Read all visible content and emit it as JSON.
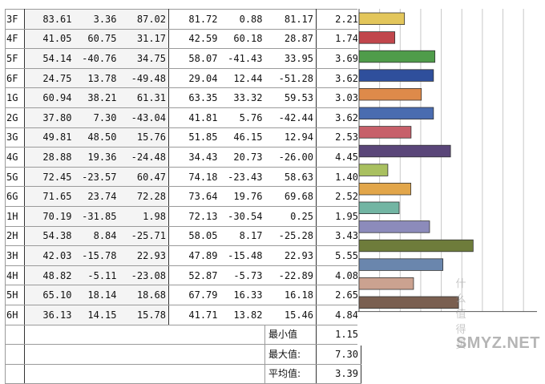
{
  "rows": [
    {
      "label": "3F",
      "a": [
        "83.61",
        "3.36",
        "87.02"
      ],
      "b": [
        "81.72",
        "0.88",
        "81.17"
      ],
      "de": "2.21",
      "color": "#e3c65b"
    },
    {
      "label": "4F",
      "a": [
        "41.05",
        "60.75",
        "31.17"
      ],
      "b": [
        "42.59",
        "60.18",
        "28.87"
      ],
      "de": "1.74",
      "color": "#c1464c"
    },
    {
      "label": "5F",
      "a": [
        "54.14",
        "-40.76",
        "34.75"
      ],
      "b": [
        "58.07",
        "-41.43",
        "33.95"
      ],
      "de": "3.69",
      "color": "#4f9c4a"
    },
    {
      "label": "6F",
      "a": [
        "24.75",
        "13.78",
        "-49.48"
      ],
      "b": [
        "29.04",
        "12.44",
        "-51.28"
      ],
      "de": "3.62",
      "color": "#2f4f9c"
    },
    {
      "label": "1G",
      "a": [
        "60.94",
        "38.21",
        "61.31"
      ],
      "b": [
        "63.35",
        "33.32",
        "59.53"
      ],
      "de": "3.03",
      "color": "#de8a4a"
    },
    {
      "label": "2G",
      "a": [
        "37.80",
        "7.30",
        "-43.04"
      ],
      "b": [
        "41.81",
        "5.76",
        "-42.44"
      ],
      "de": "3.62",
      "color": "#4a6cb0"
    },
    {
      "label": "3G",
      "a": [
        "49.81",
        "48.50",
        "15.76"
      ],
      "b": [
        "51.85",
        "46.15",
        "12.94"
      ],
      "de": "2.53",
      "color": "#c7606a"
    },
    {
      "label": "4G",
      "a": [
        "28.88",
        "19.36",
        "-24.48"
      ],
      "b": [
        "34.43",
        "20.73",
        "-26.00"
      ],
      "de": "4.45",
      "color": "#5a4679"
    },
    {
      "label": "5G",
      "a": [
        "72.45",
        "-23.57",
        "60.47"
      ],
      "b": [
        "74.18",
        "-23.43",
        "58.63"
      ],
      "de": "1.40",
      "color": "#a9c060"
    },
    {
      "label": "6G",
      "a": [
        "71.65",
        "23.74",
        "72.28"
      ],
      "b": [
        "73.64",
        "19.76",
        "69.68"
      ],
      "de": "2.52",
      "color": "#e2a64a"
    },
    {
      "label": "1H",
      "a": [
        "70.19",
        "-31.85",
        "1.98"
      ],
      "b": [
        "72.13",
        "-30.54",
        "0.25"
      ],
      "de": "1.95",
      "color": "#72b5a3"
    },
    {
      "label": "2H",
      "a": [
        "54.38",
        "8.84",
        "-25.71"
      ],
      "b": [
        "58.05",
        "8.17",
        "-25.28"
      ],
      "de": "3.43",
      "color": "#8c8bbb"
    },
    {
      "label": "3H",
      "a": [
        "42.03",
        "-15.78",
        "22.93"
      ],
      "b": [
        "47.89",
        "-15.48",
        "22.93"
      ],
      "de": "5.55",
      "color": "#6e7c3b"
    },
    {
      "label": "4H",
      "a": [
        "48.82",
        "-5.11",
        "-23.08"
      ],
      "b": [
        "52.87",
        "-5.73",
        "-22.89"
      ],
      "de": "4.08",
      "color": "#6a86ad"
    },
    {
      "label": "5H",
      "a": [
        "65.10",
        "18.14",
        "18.68"
      ],
      "b": [
        "67.79",
        "16.33",
        "16.18"
      ],
      "de": "2.65",
      "color": "#cba290"
    },
    {
      "label": "6H",
      "a": [
        "36.13",
        "14.15",
        "15.78"
      ],
      "b": [
        "41.71",
        "13.82",
        "15.46"
      ],
      "de": "4.84",
      "color": "#7a5f50"
    }
  ],
  "summary": [
    {
      "label": "最小值",
      "value": "1.15"
    },
    {
      "label": "最大值:",
      "value": "7.30"
    },
    {
      "label": "平均值:",
      "value": "3.39"
    }
  ],
  "chart_data": {
    "type": "bar",
    "orientation": "horizontal",
    "categories": [
      "3F",
      "4F",
      "5F",
      "6F",
      "1G",
      "2G",
      "3G",
      "4G",
      "5G",
      "6G",
      "1H",
      "2H",
      "3H",
      "4H",
      "5H",
      "6H"
    ],
    "values": [
      2.21,
      1.74,
      3.69,
      3.62,
      3.03,
      3.62,
      2.53,
      4.45,
      1.4,
      2.52,
      1.95,
      3.43,
      5.55,
      4.08,
      2.65,
      4.84
    ],
    "xlim": [
      0,
      8.5
    ],
    "grid": true,
    "title": "",
    "xlabel": "",
    "ylabel": ""
  },
  "watermark": {
    "text": "SMYZ.NET",
    "faded": "什么值得买"
  }
}
